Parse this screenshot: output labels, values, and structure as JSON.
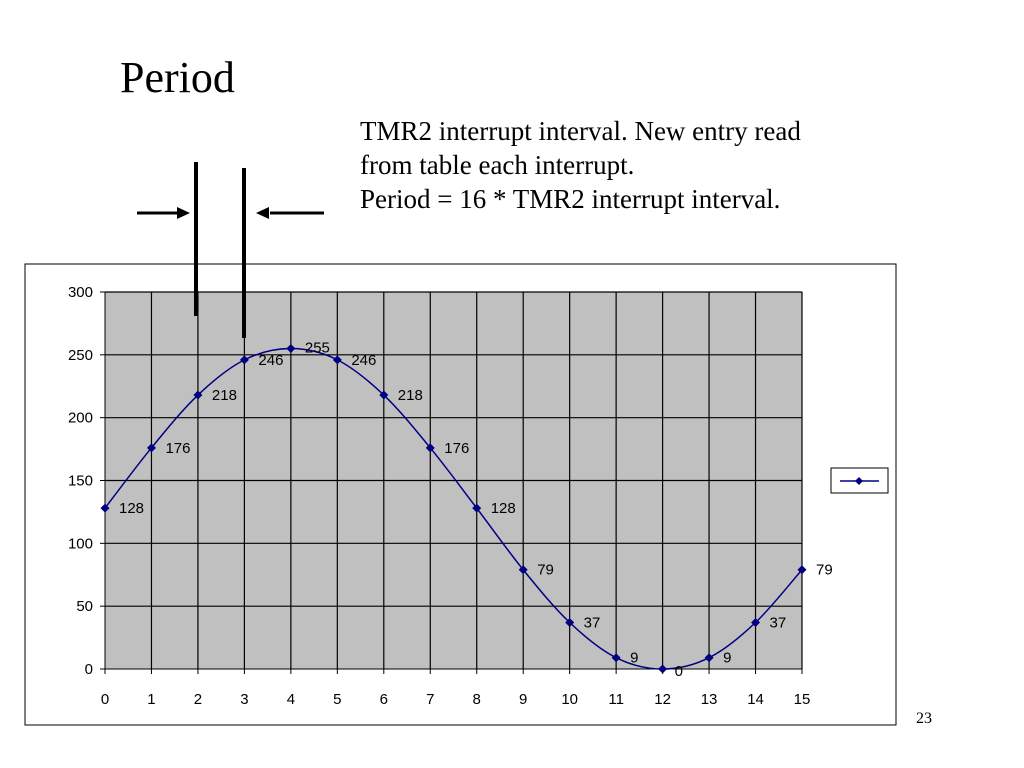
{
  "slide": {
    "title": "Period",
    "annotation_lines": [
      "TMR2 interrupt interval. New entry read",
      "from table each interrupt.",
      "Period = 16 * TMR2  interrupt interval."
    ],
    "page_number": "23"
  },
  "colors": {
    "plot_background": "#c0c0c0",
    "series_line": "#000080",
    "grid": "#000000"
  },
  "chart_data": {
    "type": "line",
    "x": [
      0,
      1,
      2,
      3,
      4,
      5,
      6,
      7,
      8,
      9,
      10,
      11,
      12,
      13,
      14,
      15
    ],
    "series": [
      {
        "values": [
          128,
          176,
          218,
          246,
          255,
          246,
          218,
          176,
          128,
          79,
          37,
          9,
          0,
          9,
          37,
          79
        ],
        "marker": "diamond",
        "data_labels": true
      }
    ],
    "xticks": [
      0,
      1,
      2,
      3,
      4,
      5,
      6,
      7,
      8,
      9,
      10,
      11,
      12,
      13,
      14,
      15
    ],
    "yticks": [
      0,
      50,
      100,
      150,
      200,
      250,
      300
    ],
    "xlim": [
      0,
      15
    ],
    "ylim": [
      0,
      300
    ],
    "grid": true,
    "legend": "right",
    "period_marker_between_x": [
      2,
      3
    ]
  }
}
